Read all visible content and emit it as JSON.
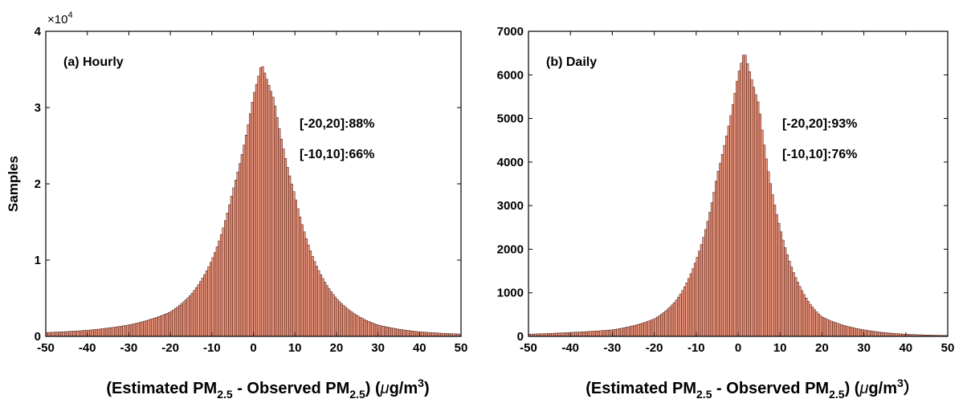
{
  "chart_data": [
    {
      "type": "bar",
      "panel_label": "(a) Hourly",
      "ylabel": "Samples",
      "xlabel": {
        "pre": "(Estimated PM",
        "sub1": "2.5",
        "mid": " - Observed PM",
        "sub2": "2.5",
        "post": ") (",
        "mu": "μ",
        "unit": "g/m",
        "sup": "3",
        "close": ")"
      },
      "y_multiplier": {
        "base": "×10",
        "exp": "4"
      },
      "xlim": [
        -50,
        50
      ],
      "ylim": [
        0,
        40000
      ],
      "xticks": [
        -50,
        -40,
        -30,
        -20,
        -10,
        0,
        10,
        20,
        30,
        40,
        50
      ],
      "yticks": [
        0,
        10000,
        20000,
        30000,
        40000
      ],
      "ytick_labels": [
        "0",
        "1",
        "2",
        "3",
        "4"
      ],
      "annotations": [
        "[-20,20]:88%",
        "[-10,10]:66%"
      ],
      "bin_width": 0.5,
      "peak": {
        "x": 2,
        "y": 35800
      },
      "approx_values": [
        {
          "x": -50,
          "y": 500
        },
        {
          "x": -40,
          "y": 800
        },
        {
          "x": -30,
          "y": 1500
        },
        {
          "x": -20,
          "y": 3200
        },
        {
          "x": -15,
          "y": 5500
        },
        {
          "x": -10,
          "y": 10000
        },
        {
          "x": -5,
          "y": 19000
        },
        {
          "x": 0,
          "y": 31500
        },
        {
          "x": 2,
          "y": 35800
        },
        {
          "x": 5,
          "y": 31000
        },
        {
          "x": 10,
          "y": 18500
        },
        {
          "x": 15,
          "y": 9500
        },
        {
          "x": 20,
          "y": 5000
        },
        {
          "x": 30,
          "y": 1500
        },
        {
          "x": 40,
          "y": 600
        },
        {
          "x": 50,
          "y": 300
        }
      ],
      "bar_color": "#e8927a",
      "edge_color": "#2a0a05"
    },
    {
      "type": "bar",
      "panel_label": "(b) Daily",
      "ylabel": "",
      "xlabel": {
        "pre": "(Estimated PM",
        "sub1": "2.5",
        "mid": " - Observed PM",
        "sub2": "2.5",
        "post": ") (",
        "mu": "μ",
        "unit": "g/m",
        "sup": "3",
        "close": "）"
      },
      "xlim": [
        -50,
        50
      ],
      "ylim": [
        0,
        7000
      ],
      "xticks": [
        -50,
        -40,
        -30,
        -20,
        -10,
        0,
        10,
        20,
        30,
        40,
        50
      ],
      "yticks": [
        0,
        1000,
        2000,
        3000,
        4000,
        5000,
        6000,
        7000
      ],
      "ytick_labels": [
        "0",
        "1000",
        "2000",
        "3000",
        "4000",
        "5000",
        "6000",
        "7000"
      ],
      "annotations": [
        "[-20,20]:93%",
        "[-10,10]:76%"
      ],
      "bin_width": 0.5,
      "peak": {
        "x": 1.5,
        "y": 6550
      },
      "approx_values": [
        {
          "x": -50,
          "y": 50
        },
        {
          "x": -40,
          "y": 90
        },
        {
          "x": -30,
          "y": 150
        },
        {
          "x": -20,
          "y": 400
        },
        {
          "x": -15,
          "y": 800
        },
        {
          "x": -10,
          "y": 1750
        },
        {
          "x": -5,
          "y": 3700
        },
        {
          "x": 0,
          "y": 6000
        },
        {
          "x": 1.5,
          "y": 6550
        },
        {
          "x": 5,
          "y": 5300
        },
        {
          "x": 10,
          "y": 2500
        },
        {
          "x": 15,
          "y": 1100
        },
        {
          "x": 20,
          "y": 450
        },
        {
          "x": 30,
          "y": 150
        },
        {
          "x": 40,
          "y": 50
        },
        {
          "x": 50,
          "y": 20
        }
      ],
      "bar_color": "#e8927a",
      "edge_color": "#2a0a05"
    }
  ]
}
